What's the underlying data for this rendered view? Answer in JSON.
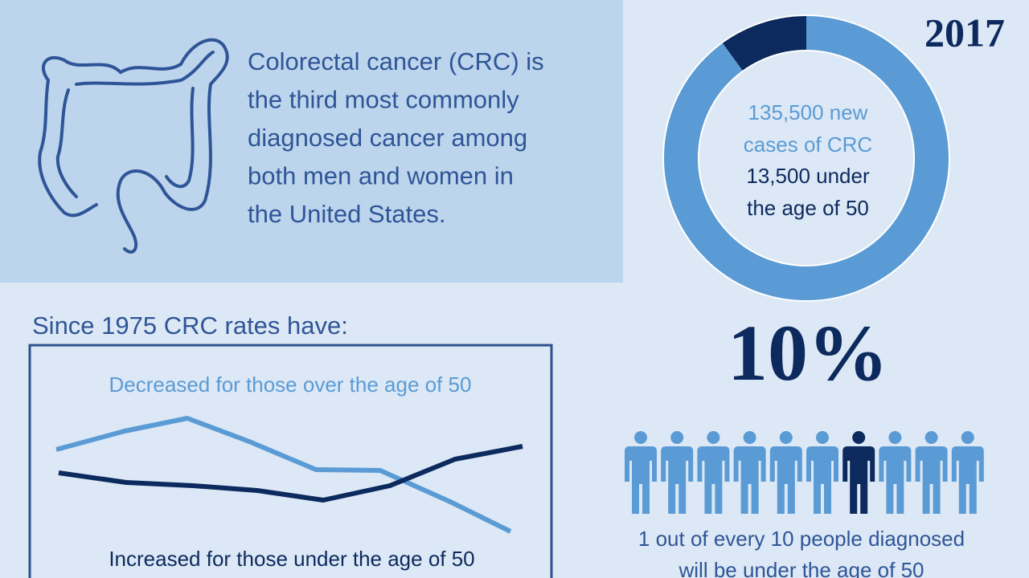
{
  "header": {
    "lines": [
      "Colorectal cancer (CRC) is",
      "the third most commonly",
      "diagnosed cancer among",
      "both men and women in",
      "the United States."
    ]
  },
  "donut": {
    "year": "2017",
    "lines": [
      "135,500 new",
      "cases of CRC",
      "13,500 under",
      "the age of 50"
    ]
  },
  "trend": {
    "title": "Since 1975 CRC rates have:",
    "decreased": "Decreased for those over the age of 50",
    "increased": "Increased for those under the age of 50"
  },
  "stat": {
    "value": 10,
    "label": "10%"
  },
  "caption": [
    "1 out of every 10 people diagnosed",
    "will be under the age of 50"
  ]
}
